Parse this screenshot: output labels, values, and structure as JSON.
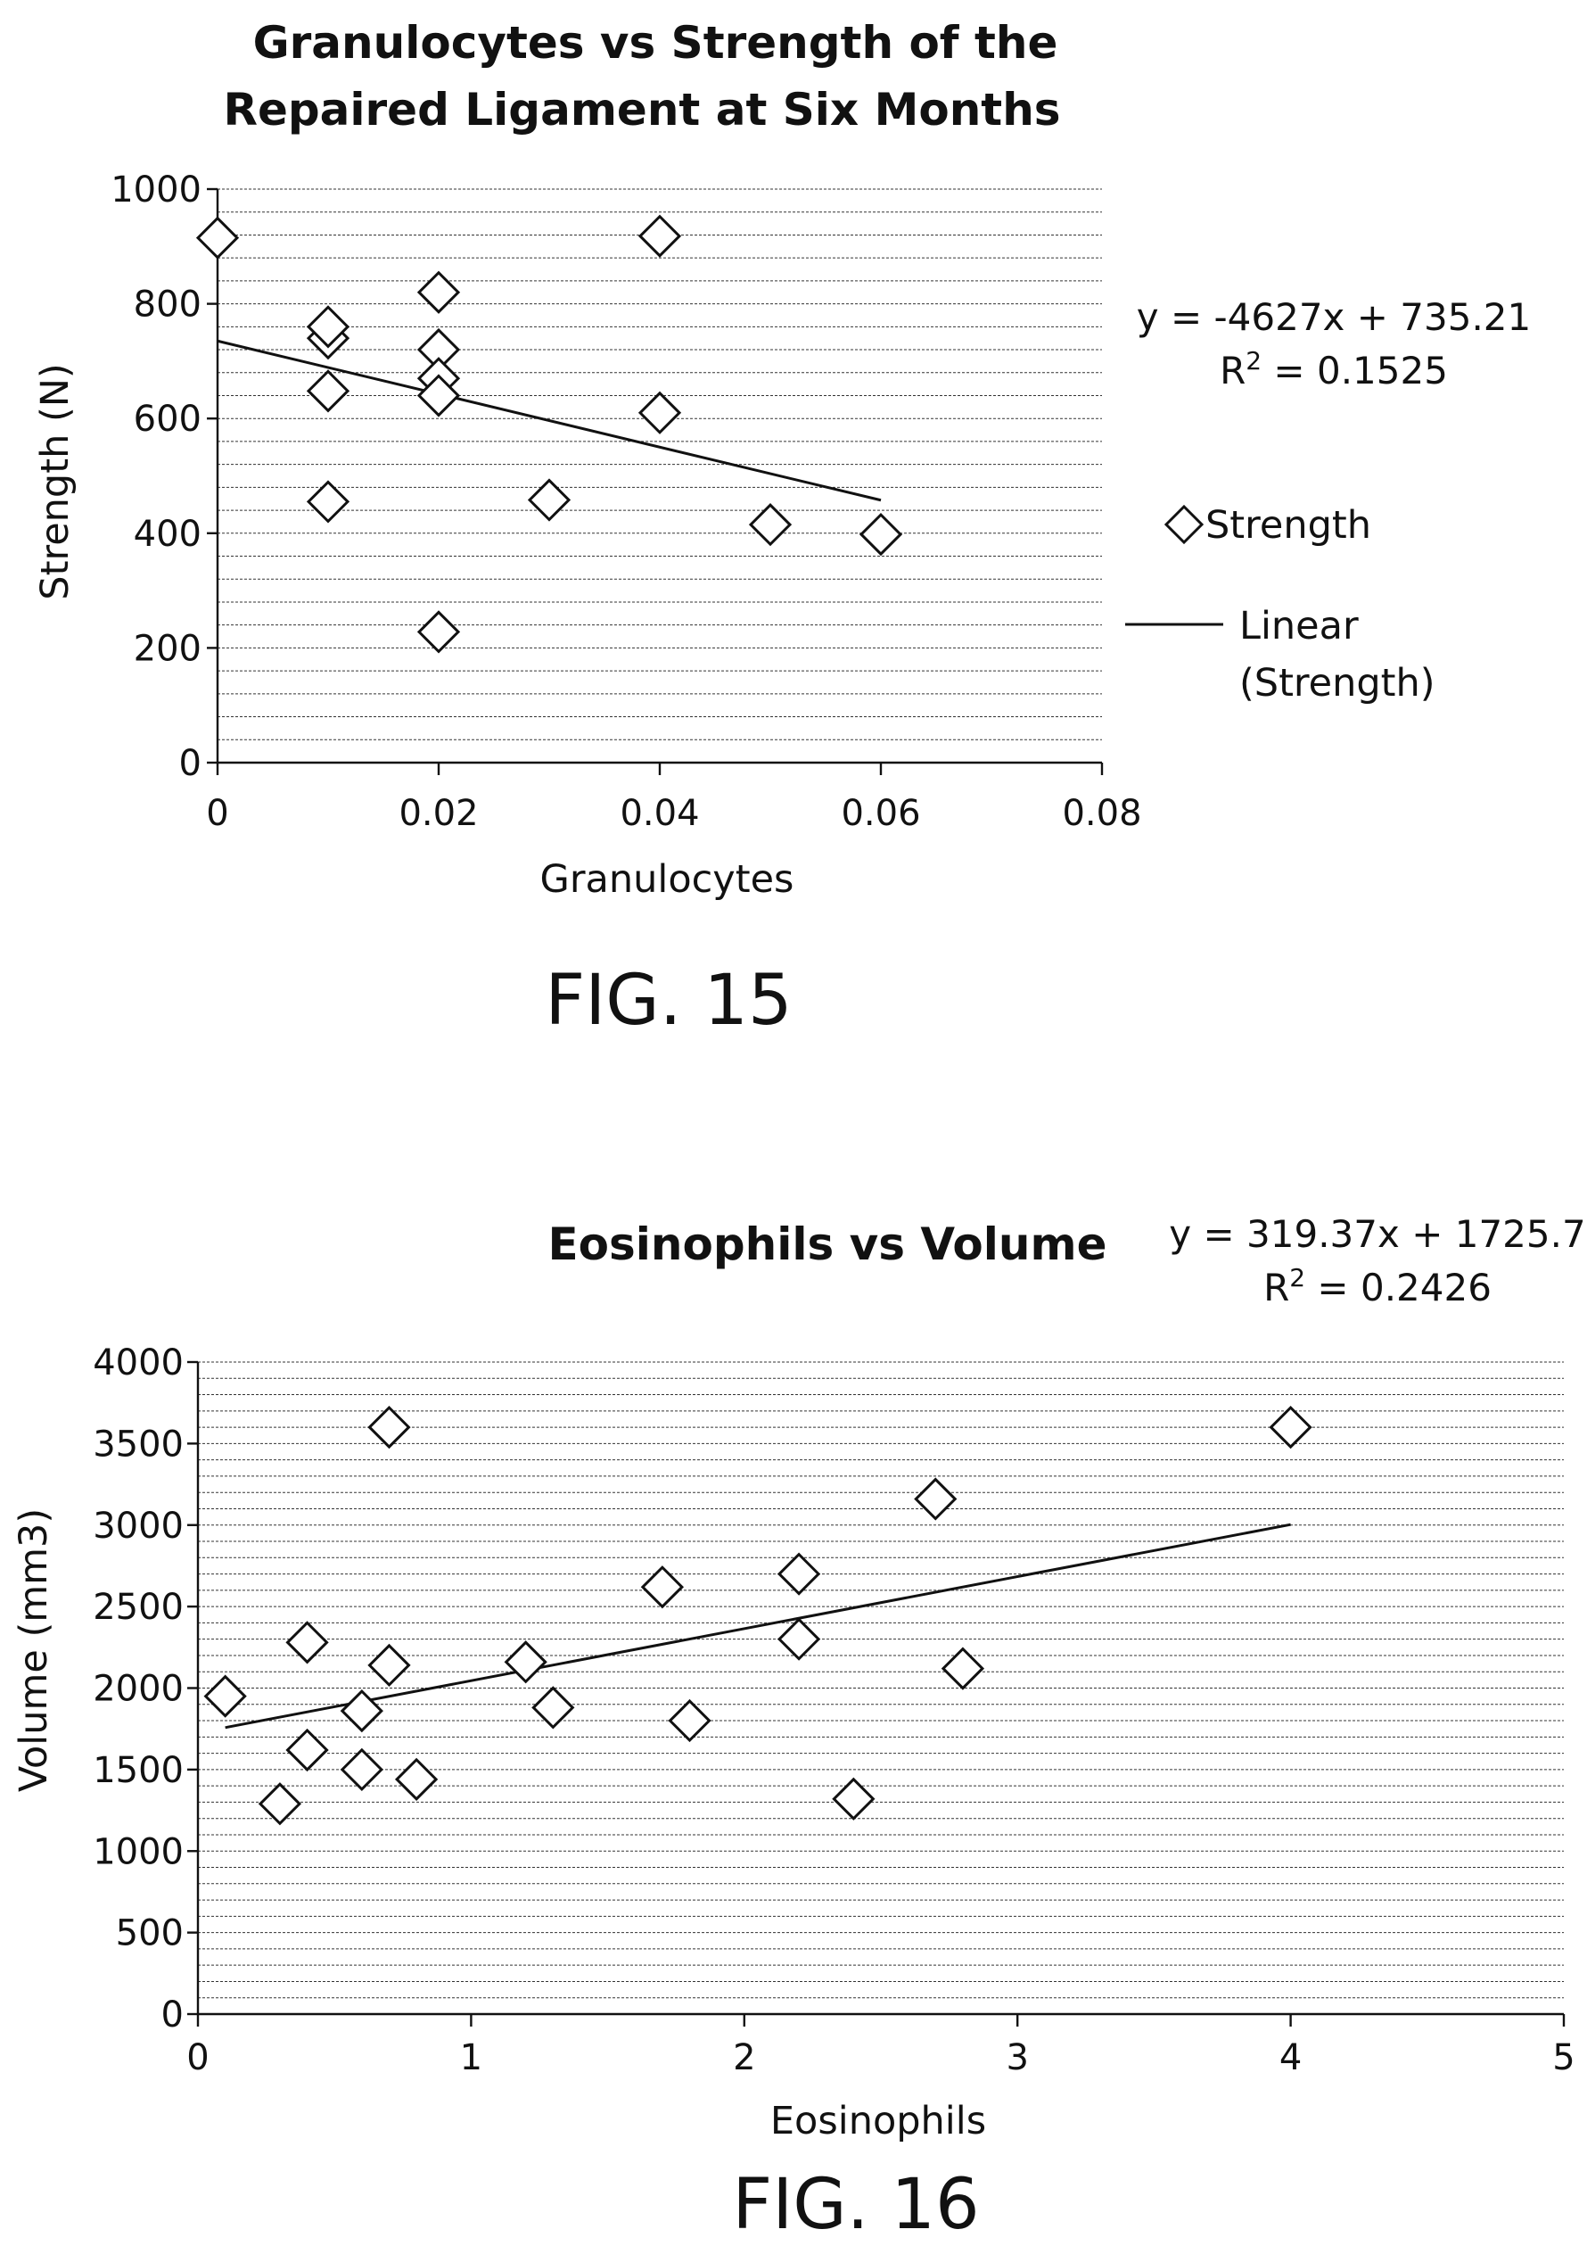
{
  "chart_data": [
    {
      "type": "scatter",
      "title_lines": [
        "Granulocytes vs Strength of the",
        "Repaired Ligament at Six Months"
      ],
      "xlabel": "Granulocytes",
      "ylabel": "Strength (N)",
      "xlim": [
        0,
        0.08
      ],
      "ylim": [
        0,
        1000
      ],
      "x_ticks": [
        "0",
        "0.02",
        "0.04",
        "0.06",
        "0.08"
      ],
      "y_ticks": [
        "0",
        "200",
        "400",
        "600",
        "800",
        "1000"
      ],
      "grid": true,
      "series": [
        {
          "name": "Strength",
          "marker": "diamond",
          "points": [
            [
              0.0,
              915
            ],
            [
              0.01,
              740
            ],
            [
              0.01,
              760
            ],
            [
              0.01,
              648
            ],
            [
              0.01,
              455
            ],
            [
              0.02,
              820
            ],
            [
              0.02,
              720
            ],
            [
              0.02,
              670
            ],
            [
              0.02,
              640
            ],
            [
              0.02,
              228
            ],
            [
              0.03,
              458
            ],
            [
              0.04,
              918
            ],
            [
              0.04,
              610
            ],
            [
              0.05,
              415
            ],
            [
              0.06,
              398
            ]
          ]
        }
      ],
      "trendline": {
        "name": "Linear (Strength)",
        "slope": -4627,
        "intercept": 735.21,
        "x_range": [
          0,
          0.06
        ]
      },
      "equation_text": "y = -4627x + 735.21",
      "r2_prefix": "R",
      "r2_sup": "2",
      "r2_value": " = 0.1525",
      "legend": {
        "placement": "right",
        "points_label": "Strength",
        "line_label_1": "Linear",
        "line_label_2": "(Strength)"
      },
      "figure_label": "FIG. 15"
    },
    {
      "type": "scatter",
      "title": "Eosinophils vs Volume",
      "xlabel": "Eosinophils",
      "ylabel": "Volume (mm3)",
      "xlim": [
        0,
        5
      ],
      "ylim": [
        0,
        4000
      ],
      "x_ticks": [
        "0",
        "1",
        "2",
        "3",
        "4",
        "5"
      ],
      "y_ticks": [
        "0",
        "500",
        "1000",
        "1500",
        "2000",
        "2500",
        "3000",
        "3500",
        "4000"
      ],
      "grid": true,
      "series": [
        {
          "name": "",
          "marker": "diamond",
          "points": [
            [
              0.1,
              1950
            ],
            [
              0.3,
              1290
            ],
            [
              0.4,
              1620
            ],
            [
              0.4,
              2280
            ],
            [
              0.6,
              1500
            ],
            [
              0.6,
              1860
            ],
            [
              0.7,
              2140
            ],
            [
              0.7,
              3600
            ],
            [
              0.8,
              1440
            ],
            [
              1.2,
              2160
            ],
            [
              1.3,
              1880
            ],
            [
              1.7,
              2620
            ],
            [
              1.8,
              1800
            ],
            [
              2.2,
              2700
            ],
            [
              2.2,
              2300
            ],
            [
              2.4,
              1320
            ],
            [
              2.7,
              3160
            ],
            [
              2.8,
              2120
            ],
            [
              4.0,
              3600
            ]
          ]
        }
      ],
      "trendline": {
        "slope": 319.37,
        "intercept": 1725.7,
        "x_range": [
          0.1,
          4.0
        ]
      },
      "equation_text": "y = 319.37x + 1725.7",
      "r2_prefix": "R",
      "r2_sup": "2",
      "r2_value": " = 0.2426",
      "figure_label": "FIG. 16"
    }
  ]
}
